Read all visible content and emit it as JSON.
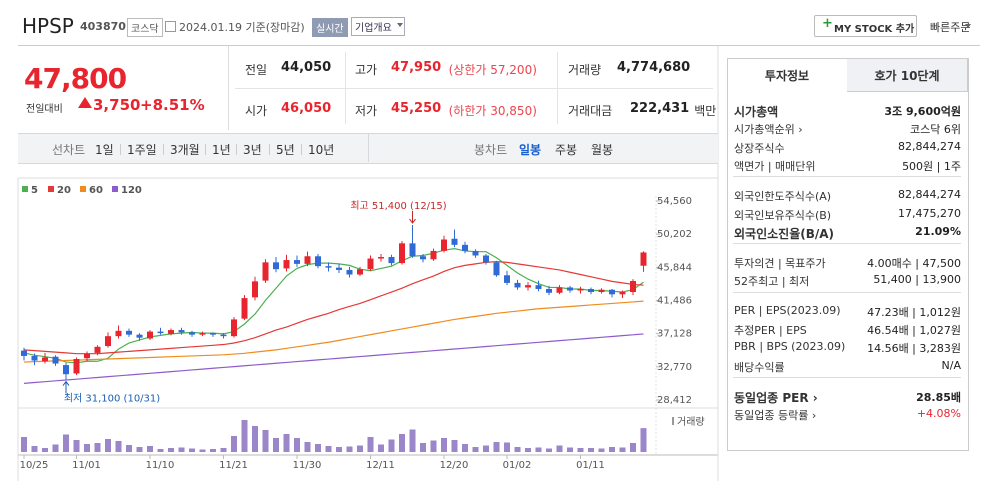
{
  "header": {
    "name": "HPSP",
    "code": "403870",
    "market": "코스닥",
    "date": "2024.01.19 기준(장마감)",
    "badge": "실시간",
    "menu": "기업개요",
    "mystock": "MY STOCK 추가",
    "quick": "빠른주문"
  },
  "price": {
    "current": "47,800",
    "change_label": "전일대비",
    "change": "3,750",
    "rate": "+8.51%"
  },
  "summary": [
    {
      "label": "전일",
      "value": "44,050"
    },
    {
      "label": "고가",
      "value": "47,950",
      "note": "(상한가 57,200)",
      "color": "#e8252e"
    },
    {
      "label": "거래량",
      "value": "4,774,680"
    },
    {
      "label": "시가",
      "value": "46,050",
      "color": "#e8252e"
    },
    {
      "label": "저가",
      "value": "45,250",
      "note": "(하한가 30,850)",
      "color": "#e8252e"
    },
    {
      "label": "거래대금",
      "value": "222,431",
      "unit": "백만"
    }
  ],
  "tabs": {
    "line_label": "선차트",
    "periods": [
      "1일",
      "1주일",
      "3개월",
      "1년",
      "3년",
      "5년",
      "10년"
    ],
    "candle_label": "봉차트",
    "candle_periods": [
      "일봉",
      "주봉",
      "월봉"
    ],
    "selected_candle_period": 0
  },
  "chart_data": {
    "type": "candlestick",
    "legend": [
      {
        "name": "5",
        "color": "#4caf50"
      },
      {
        "name": "20",
        "color": "#e53935"
      },
      {
        "name": "60",
        "color": "#f08c1e"
      },
      {
        "name": "120",
        "color": "#8e5cc8"
      }
    ],
    "ylim": [
      28412,
      54560
    ],
    "yticks": [
      {
        "value": 54560,
        "label": "54,560"
      },
      {
        "value": 50202,
        "label": "50,202"
      },
      {
        "value": 45844,
        "label": "45,844"
      },
      {
        "value": 41486,
        "label": "41,486"
      },
      {
        "value": 37128,
        "label": "37,128"
      },
      {
        "value": 32770,
        "label": "32,770"
      },
      {
        "value": 28412,
        "label": "28,412"
      }
    ],
    "categories": [
      "10/25",
      null,
      null,
      null,
      null,
      "11/01",
      null,
      null,
      null,
      null,
      null,
      null,
      "11/10",
      null,
      null,
      null,
      null,
      null,
      null,
      "11/21",
      null,
      null,
      null,
      null,
      null,
      null,
      "11/30",
      null,
      null,
      null,
      null,
      null,
      null,
      "12/11",
      null,
      null,
      null,
      null,
      null,
      null,
      "12/20",
      null,
      null,
      null,
      null,
      null,
      "01/02",
      null,
      null,
      null,
      null,
      null,
      null,
      "01/11",
      null,
      null,
      null,
      null,
      null,
      null
    ],
    "up_color": "#e8252e",
    "down_color": "#2f6ad6",
    "candles": [
      [
        34900,
        35300,
        33600,
        34200
      ],
      [
        34200,
        34500,
        33000,
        33600
      ],
      [
        33500,
        34600,
        33200,
        34000
      ],
      [
        34100,
        34300,
        32900,
        33200
      ],
      [
        33000,
        33300,
        31100,
        31800
      ],
      [
        31900,
        34000,
        31700,
        33800
      ],
      [
        33900,
        34800,
        33500,
        34500
      ],
      [
        34600,
        35600,
        34300,
        35400
      ],
      [
        35500,
        37300,
        35300,
        36800
      ],
      [
        36800,
        38200,
        36500,
        37500
      ],
      [
        37500,
        37800,
        36700,
        37000
      ],
      [
        37000,
        37200,
        36200,
        36600
      ],
      [
        36500,
        37600,
        36300,
        37400
      ],
      [
        37400,
        37900,
        37000,
        37200
      ],
      [
        37100,
        37800,
        36900,
        37600
      ],
      [
        37600,
        37900,
        37000,
        37300
      ],
      [
        37300,
        37500,
        36700,
        37000
      ],
      [
        37000,
        37400,
        36800,
        37200
      ],
      [
        37200,
        37300,
        36700,
        37000
      ],
      [
        37000,
        37200,
        36500,
        36800
      ],
      [
        36800,
        39300,
        36600,
        39000
      ],
      [
        39100,
        42200,
        38900,
        41800
      ],
      [
        41900,
        44600,
        41500,
        44000
      ],
      [
        44100,
        46900,
        43800,
        46500
      ],
      [
        46500,
        47200,
        45200,
        45600
      ],
      [
        45700,
        47500,
        45300,
        46800
      ],
      [
        46800,
        47400,
        45900,
        46300
      ],
      [
        46300,
        47900,
        46000,
        47300
      ],
      [
        47300,
        47600,
        45700,
        46000
      ],
      [
        46000,
        46500,
        45300,
        45800
      ],
      [
        45800,
        46300,
        45100,
        45500
      ],
      [
        45500,
        45900,
        44500,
        44900
      ],
      [
        44900,
        45900,
        44700,
        45600
      ],
      [
        45600,
        47400,
        45400,
        47000
      ],
      [
        47000,
        47600,
        46600,
        47200
      ],
      [
        47200,
        47500,
        46100,
        46400
      ],
      [
        46400,
        49300,
        46200,
        49000
      ],
      [
        49000,
        51400,
        47100,
        47300
      ],
      [
        47300,
        47600,
        46500,
        46900
      ],
      [
        46900,
        48300,
        46700,
        48000
      ],
      [
        48000,
        50000,
        47800,
        49500
      ],
      [
        49600,
        50800,
        48500,
        48800
      ],
      [
        48800,
        49200,
        47700,
        48000
      ],
      [
        48000,
        48200,
        47100,
        47400
      ],
      [
        47400,
        47600,
        46200,
        46500
      ],
      [
        46500,
        46700,
        44600,
        44800
      ],
      [
        44800,
        45400,
        43500,
        43800
      ],
      [
        43800,
        44200,
        42900,
        43200
      ],
      [
        43200,
        43900,
        42800,
        43500
      ],
      [
        43500,
        44100,
        42700,
        43000
      ],
      [
        43000,
        43400,
        42200,
        42500
      ],
      [
        42500,
        43500,
        42300,
        43200
      ],
      [
        43200,
        43400,
        42500,
        42800
      ],
      [
        42800,
        43300,
        42400,
        43000
      ],
      [
        43000,
        43200,
        42300,
        42600
      ],
      [
        42600,
        43100,
        42400,
        42900
      ],
      [
        42900,
        43000,
        41900,
        42300
      ],
      [
        42300,
        42800,
        41800,
        42600
      ],
      [
        42600,
        44300,
        42200,
        44050
      ],
      [
        46050,
        47950,
        45250,
        47800
      ]
    ],
    "moving_averages": [
      [
        34600,
        34300,
        34100,
        33900,
        33400,
        33300,
        33500,
        33500,
        33900,
        35100,
        35900,
        36300,
        36700,
        36900,
        37100,
        37200,
        37300,
        37200,
        37200,
        37100,
        37400,
        38400,
        39700,
        41500,
        43100,
        44700,
        45700,
        46200,
        46400,
        46400,
        46300,
        46100,
        45600,
        45400,
        45700,
        46000,
        46700,
        47300,
        47400,
        47700,
        48100,
        48300,
        48000,
        47900,
        47900,
        47100,
        46100,
        45100,
        44300,
        43700,
        43200,
        43200,
        43000,
        43000,
        42800,
        42800,
        42700,
        42600,
        42900,
        43900
      ],
      [
        35000,
        34900,
        34800,
        34700,
        34600,
        34500,
        34500,
        34500,
        34600,
        34700,
        34800,
        34900,
        35000,
        35100,
        35200,
        35300,
        35400,
        35500,
        35600,
        35700,
        35900,
        36200,
        36600,
        37100,
        37600,
        38000,
        38500,
        39000,
        39400,
        39800,
        40300,
        40700,
        41100,
        41600,
        42100,
        42600,
        43100,
        43700,
        44200,
        44700,
        45300,
        45800,
        46100,
        46300,
        46500,
        46600,
        46500,
        46300,
        46100,
        45900,
        45700,
        45500,
        45200,
        44900,
        44600,
        44300,
        44000,
        43800,
        43600,
        43500
      ],
      [
        33400,
        33450,
        33500,
        33550,
        33600,
        33650,
        33700,
        33750,
        33800,
        33850,
        33900,
        33950,
        34000,
        34050,
        34100,
        34150,
        34200,
        34250,
        34300,
        34350,
        34450,
        34550,
        34700,
        34850,
        35000,
        35200,
        35400,
        35600,
        35800,
        36000,
        36250,
        36500,
        36750,
        37000,
        37250,
        37500,
        37750,
        38000,
        38250,
        38500,
        38750,
        39000,
        39200,
        39400,
        39600,
        39800,
        39950,
        40100,
        40250,
        40400,
        40500,
        40600,
        40700,
        40800,
        40900,
        41000,
        41100,
        41200,
        41300,
        41400
      ],
      [
        30600,
        30710,
        30820,
        30930,
        31040,
        31150,
        31260,
        31370,
        31480,
        31590,
        31700,
        31810,
        31920,
        32030,
        32140,
        32250,
        32360,
        32470,
        32580,
        32690,
        32800,
        32910,
        33020,
        33130,
        33240,
        33350,
        33460,
        33570,
        33680,
        33790,
        33900,
        34010,
        34120,
        34230,
        34340,
        34450,
        34560,
        34670,
        34780,
        34890,
        35000,
        35110,
        35220,
        35330,
        35440,
        35550,
        35660,
        35770,
        35880,
        35990,
        36100,
        36210,
        36320,
        36430,
        36540,
        36650,
        36760,
        36870,
        36980,
        37090
      ]
    ],
    "volume_label": "거래량",
    "volume_color": "#9a86c8",
    "volume_ylim": [
      0,
      8000000
    ],
    "volumes": [
      3000000,
      1200000,
      800000,
      1500000,
      3500000,
      2400000,
      1600000,
      1800000,
      2600000,
      2200000,
      1400000,
      1000000,
      1200000,
      600000,
      800000,
      900000,
      700000,
      500000,
      600000,
      800000,
      3200000,
      6400000,
      5200000,
      4400000,
      2800000,
      3600000,
      2800000,
      2000000,
      1600000,
      1200000,
      1000000,
      1100000,
      1300000,
      3000000,
      1500000,
      2500000,
      3600000,
      4500000,
      1800000,
      2300000,
      2800000,
      2400000,
      1600000,
      1000000,
      1300000,
      2000000,
      1900000,
      1000000,
      800000,
      900000,
      700000,
      1300000,
      900000,
      800000,
      800000,
      700000,
      1000000,
      900000,
      1800000,
      4774680
    ],
    "annotations": [
      {
        "text": "최고 51,400 (12/15)",
        "value": 51400,
        "kind": "high",
        "color": "#c62828"
      },
      {
        "text": "최저 31,100 (10/31)",
        "value": 31100,
        "kind": "low",
        "color": "#1a5fb4"
      }
    ]
  },
  "info": {
    "tabs": [
      "투자정보",
      "호가 10단계"
    ],
    "groups": [
      [
        {
          "label": "시가총액",
          "value": "3조 9,600억원",
          "strong": true
        },
        {
          "label": "시가총액순위 ›",
          "value": "코스닥 6위"
        },
        {
          "label": "상장주식수",
          "value": "82,844,274"
        },
        {
          "label": "액면가 | 매매단위",
          "value": "500원 | 1주"
        }
      ],
      [
        {
          "label": "외국인한도주식수(A)",
          "value": "82,844,274"
        },
        {
          "label": "외국인보유주식수(B)",
          "value": "17,475,270"
        },
        {
          "label": "외국인소진율(B/A)",
          "value": "21.09%",
          "strong": true
        }
      ],
      [
        {
          "label": "투자의견 | 목표주가",
          "value": "4.00매수 | 47,500"
        },
        {
          "label": "52주최고 | 최저",
          "value": "51,400 | 13,900"
        }
      ],
      [
        {
          "label": "PER | EPS(2023.09)",
          "value": "47.23배 | 1,012원"
        },
        {
          "label": "추정PER | EPS",
          "value": "46.54배 | 1,027원"
        },
        {
          "label": "PBR | BPS (2023.09)",
          "value": "14.56배 | 3,283원"
        },
        {
          "label": "배당수익률",
          "value": "N/A"
        }
      ],
      [
        {
          "label": "동일업종 PER ›",
          "value": "28.85배",
          "strong": true
        },
        {
          "label": "동일업종 등락률 ›",
          "value": "+4.08%",
          "color": "#e8252e"
        }
      ]
    ]
  }
}
